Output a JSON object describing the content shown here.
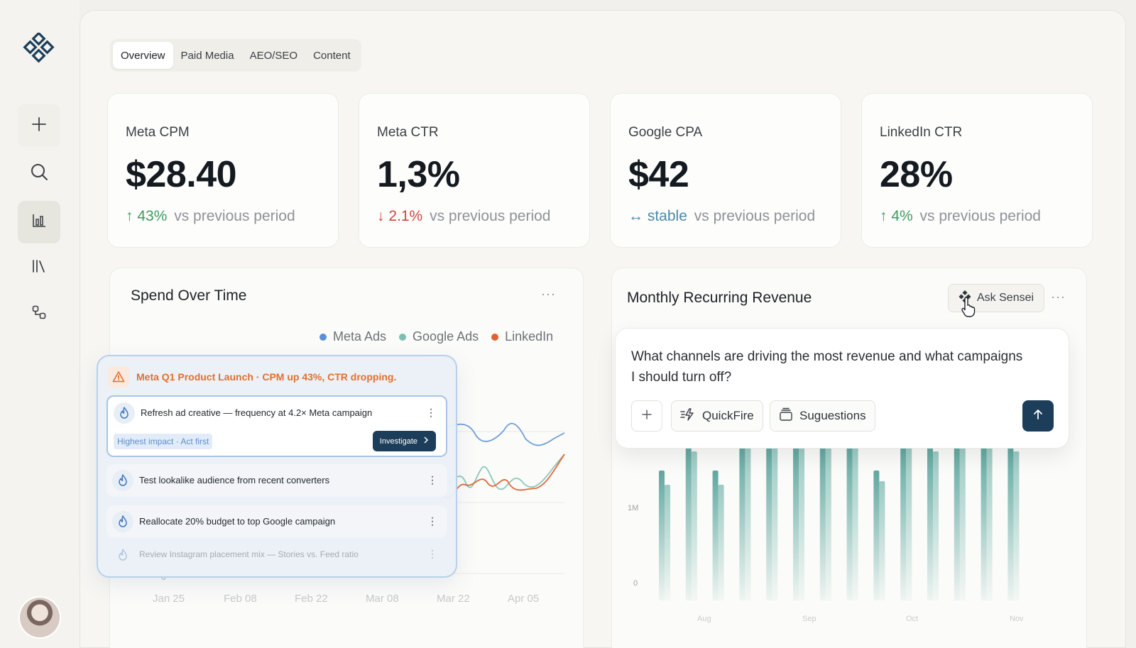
{
  "tabs": [
    {
      "label": "Overview",
      "active": true
    },
    {
      "label": "Paid Media",
      "active": false
    },
    {
      "label": "AEO/SEO",
      "active": false
    },
    {
      "label": "Content",
      "active": false
    }
  ],
  "sidebar": {
    "icons": [
      "plus-icon",
      "search-icon",
      "bar-chart-icon",
      "library-icon",
      "flows-icon"
    ],
    "active": "bar-chart-icon"
  },
  "kpis": [
    {
      "label": "Meta CPM",
      "value": "$28.40",
      "delta": "43%",
      "direction": "up",
      "suffix": "vs previous period"
    },
    {
      "label": "Meta CTR",
      "value": "1,3%",
      "delta": "2.1%",
      "direction": "down",
      "suffix": "vs previous period"
    },
    {
      "label": "Google CPA",
      "value": "$42",
      "delta": "stable",
      "direction": "flat",
      "suffix": "vs previous period"
    },
    {
      "label": "LinkedIn CTR",
      "value": "28%",
      "delta": "4%",
      "direction": "up",
      "suffix": "vs previous period"
    }
  ],
  "spend": {
    "title": "Spend Over Time",
    "legend": [
      {
        "name": "Meta Ads",
        "color": "#5b8fd8"
      },
      {
        "name": "Google Ads",
        "color": "#7fbfb2"
      },
      {
        "name": "LinkedIn",
        "color": "#e45f30"
      }
    ],
    "zero_label": "0",
    "x_labels": [
      "Jan 25",
      "Feb 08",
      "Feb 22",
      "Mar 08",
      "Mar 22",
      "Apr 05"
    ]
  },
  "recommendations": {
    "title": "Meta Q1 Product Launch · CPM up 43%, CTR dropping.",
    "items": [
      {
        "text": "Refresh ad creative — frequency at 4.2× Meta campaign",
        "badge": "Highest impact · Act first",
        "action": "Investigate"
      },
      {
        "text": "Test lookalike audience from recent converters"
      },
      {
        "text": "Reallocate 20% budget to top Google campaign"
      },
      {
        "text": "Review Instagram placement mix — Stories vs. Feed ratio"
      }
    ]
  },
  "mrr": {
    "title": "Monthly Recurring Revenue",
    "ask_label": "Ask Sensei",
    "y_labels": [
      "1M",
      "0"
    ],
    "x_labels": [
      "Aug",
      "Sep",
      "Oct",
      "Nov"
    ]
  },
  "ask_panel": {
    "question": "What channels are driving the most revenue and what campaigns I should turn off?",
    "quickfire_label": "QuickFire",
    "suggestions_label": "Suguestions"
  },
  "colors": {
    "accent_dark": "#1c3e5a",
    "up": "#3d9a5f",
    "down": "#d4443f",
    "flat": "#4d8aa8",
    "warning": "#e0702f",
    "bar_teal": "#5fa8a0"
  }
}
